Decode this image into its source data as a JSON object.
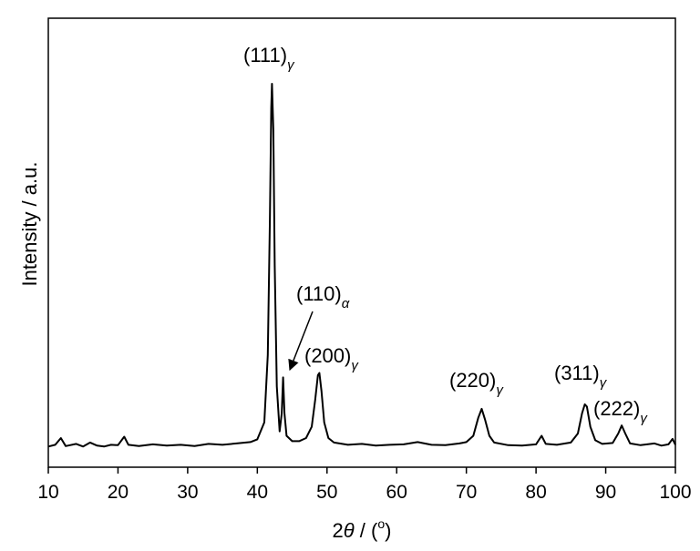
{
  "chart_data": {
    "type": "line",
    "x_label": {
      "lead": "2",
      "symbol": "θ",
      "mid": " / (",
      "sup": "o",
      "end": ")"
    },
    "y_label": "Intensity / a.u.",
    "color": "#000000",
    "xlim": [
      10,
      100
    ],
    "xticks": [
      10,
      20,
      30,
      40,
      50,
      60,
      70,
      80,
      90,
      100
    ],
    "ylim": [
      0,
      100
    ],
    "x": [
      10,
      11,
      11.8,
      12.5,
      14,
      15,
      16,
      17,
      18,
      19,
      20,
      20.9,
      21.5,
      23,
      25,
      27,
      29,
      31,
      33,
      35,
      37,
      39,
      40,
      41,
      41.5,
      41.8,
      42,
      42.1,
      42.3,
      42.5,
      42.8,
      43.2,
      43.5,
      43.7,
      43.9,
      44.2,
      45,
      46,
      47,
      47.8,
      48.3,
      48.7,
      48.9,
      49.2,
      49.6,
      50.2,
      51,
      53,
      55,
      57,
      59,
      61,
      63,
      65,
      67,
      69,
      70,
      71,
      71.7,
      72.2,
      72.7,
      73.3,
      74,
      76,
      78,
      80,
      80.8,
      81.4,
      83,
      85,
      86,
      86.6,
      87,
      87.3,
      87.8,
      88.5,
      89.5,
      91,
      91.8,
      92.3,
      92.8,
      93.5,
      95,
      97,
      98,
      99,
      99.6,
      100
    ],
    "values": [
      4.6,
      5,
      6.5,
      4.7,
      5.2,
      4.6,
      5.5,
      4.8,
      4.6,
      5,
      4.9,
      6.8,
      5,
      4.7,
      5.1,
      4.8,
      5,
      4.7,
      5.2,
      5,
      5.3,
      5.6,
      6.2,
      10,
      25,
      55,
      80,
      85.4,
      75,
      45,
      18,
      8,
      12,
      20,
      12,
      7,
      5.8,
      5.8,
      6.5,
      9,
      15,
      20.5,
      21,
      17,
      10,
      6.5,
      5.5,
      5,
      5.2,
      4.8,
      5,
      5.1,
      5.6,
      5,
      4.9,
      5.3,
      5.6,
      7,
      11,
      13,
      10.5,
      7,
      5.5,
      4.9,
      4.8,
      5.1,
      7,
      5.2,
      5,
      5.5,
      7.5,
      12,
      14,
      13.5,
      9,
      6,
      5.2,
      5.4,
      7.5,
      9.3,
      7.5,
      5.3,
      4.9,
      5.3,
      4.8,
      5.1,
      6.3,
      5
    ],
    "annotations": [
      {
        "text": "(111)",
        "sub": "γ"
      },
      {
        "text": "(110)",
        "sub": "α"
      },
      {
        "text": "(200)",
        "sub": "γ"
      },
      {
        "text": "(220)",
        "sub": "γ"
      },
      {
        "text": "(311)",
        "sub": "γ"
      },
      {
        "text": "(222)",
        "sub": "γ"
      }
    ]
  }
}
